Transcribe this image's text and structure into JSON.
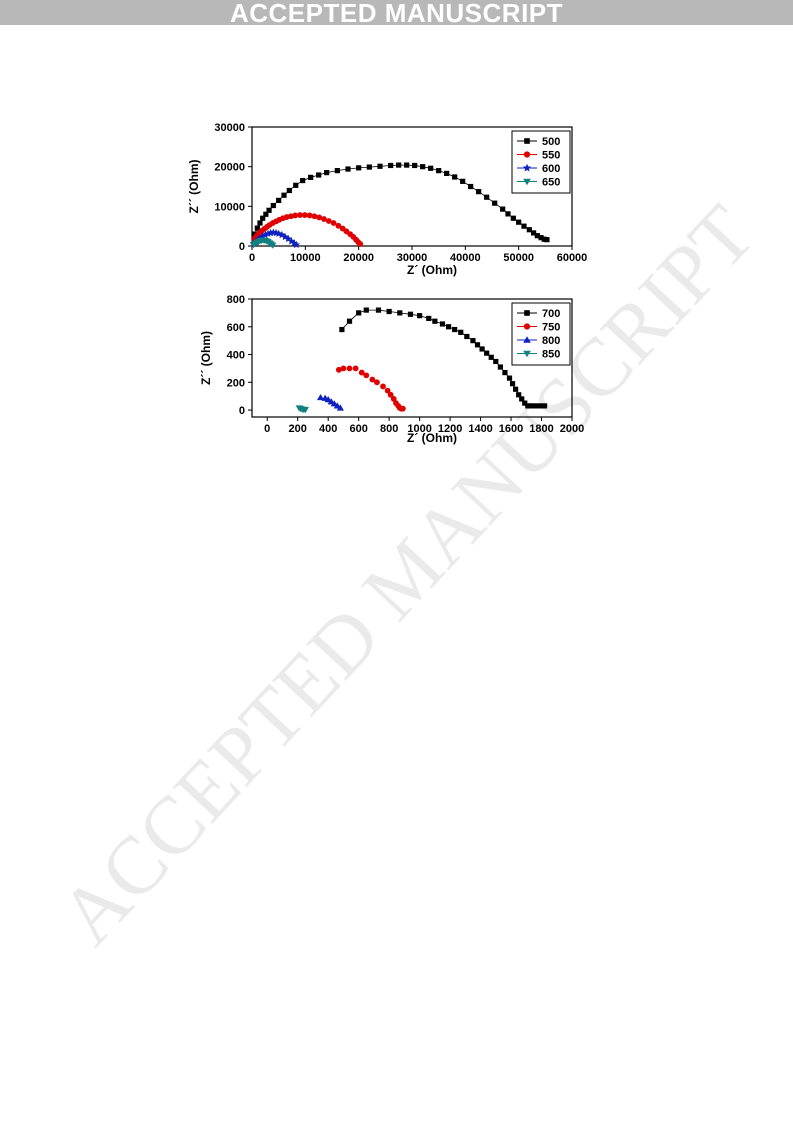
{
  "banner": {
    "text": "ACCEPTED MANUSCRIPT"
  },
  "watermark": {
    "text": "ACCEPTED MANUSCRIPT"
  },
  "chart_data": [
    {
      "type": "scatter",
      "xlabel": "Z´ (Ohm)",
      "ylabel": "Z´´ (Ohm)",
      "xlim": [
        0,
        60000
      ],
      "ylim": [
        0,
        30000
      ],
      "xticks": [
        "0",
        "10000",
        "20000",
        "30000",
        "40000",
        "50000",
        "60000"
      ],
      "yticks": [
        "0",
        "10000",
        "20000",
        "30000"
      ],
      "legend_position": "top-right",
      "grid": false,
      "series": [
        {
          "name": "500",
          "marker": "square",
          "color": "#000000",
          "line": true,
          "x": [
            500,
            1000,
            1500,
            2000,
            2600,
            3200,
            4000,
            5000,
            6000,
            7000,
            8200,
            9500,
            11000,
            12500,
            14000,
            16000,
            18000,
            20000,
            22000,
            24000,
            26000,
            27500,
            29000,
            30500,
            32000,
            33500,
            35000,
            36500,
            38000,
            39500,
            41000,
            42500,
            44000,
            45500,
            47000,
            48000,
            49000,
            50000,
            51000,
            52000,
            52800,
            53500,
            54200,
            54800,
            55300
          ],
          "y": [
            3000,
            4500,
            5800,
            7000,
            8000,
            9000,
            10200,
            11500,
            12800,
            14000,
            15300,
            16500,
            17300,
            17900,
            18500,
            19000,
            19400,
            19700,
            19900,
            20100,
            20300,
            20400,
            20400,
            20300,
            20000,
            19600,
            19000,
            18300,
            17400,
            16300,
            15000,
            13700,
            12300,
            10800,
            9300,
            8100,
            7000,
            6000,
            5000,
            4100,
            3300,
            2600,
            2100,
            1700,
            1600
          ]
        },
        {
          "name": "550",
          "marker": "circle",
          "color": "#e00000",
          "line": false,
          "x": [
            400,
            700,
            1000,
            1400,
            1800,
            2300,
            2800,
            3300,
            3900,
            4500,
            5100,
            5800,
            6500,
            7300,
            8100,
            9000,
            9900,
            10800,
            11700,
            12600,
            13500,
            14400,
            15300,
            16200,
            17000,
            17700,
            18400,
            19000,
            19500,
            19900,
            20300
          ],
          "y": [
            1700,
            2300,
            2800,
            3300,
            3800,
            4300,
            4800,
            5300,
            5800,
            6200,
            6600,
            7000,
            7300,
            7500,
            7700,
            7800,
            7800,
            7700,
            7500,
            7200,
            6800,
            6300,
            5800,
            5100,
            4400,
            3700,
            3000,
            2300,
            1600,
            1000,
            500
          ]
        },
        {
          "name": "600",
          "marker": "star",
          "color": "#1020c0",
          "line": false,
          "x": [
            300,
            700,
            1100,
            1500,
            2000,
            2500,
            3000,
            3500,
            4000,
            4500,
            5000,
            5600,
            6200,
            6800,
            7400,
            7900,
            8300
          ],
          "y": [
            600,
            1000,
            1500,
            2000,
            2400,
            2800,
            3100,
            3300,
            3400,
            3300,
            3100,
            2800,
            2300,
            1800,
            1200,
            700,
            300
          ]
        },
        {
          "name": "650",
          "marker": "triangle-down",
          "color": "#108080",
          "line": false,
          "x": [
            300,
            600,
            900,
            1200,
            1500,
            1800,
            2100,
            2400,
            2700,
            3000,
            3300,
            3600,
            3900
          ],
          "y": [
            300,
            600,
            900,
            1100,
            1300,
            1400,
            1500,
            1400,
            1300,
            1100,
            800,
            500,
            200
          ]
        }
      ]
    },
    {
      "type": "scatter",
      "xlabel": "Z´ (Ohm)",
      "ylabel": "Z´´ (Ohm)",
      "xlim": [
        -100,
        2000
      ],
      "ylim": [
        -50,
        800
      ],
      "xticks": [
        "0",
        "200",
        "400",
        "600",
        "800",
        "1000",
        "1200",
        "1400",
        "1600",
        "1800",
        "2000"
      ],
      "yticks": [
        "0",
        "200",
        "400",
        "600",
        "800"
      ],
      "legend_position": "top-right",
      "grid": false,
      "series": [
        {
          "name": "700",
          "marker": "square",
          "color": "#000000",
          "line": true,
          "x": [
            490,
            540,
            600,
            650,
            730,
            800,
            870,
            940,
            1000,
            1060,
            1100,
            1150,
            1190,
            1230,
            1270,
            1310,
            1350,
            1380,
            1410,
            1440,
            1470,
            1500,
            1530,
            1560,
            1590,
            1610,
            1630,
            1650,
            1670,
            1690,
            1710,
            1730,
            1760,
            1790,
            1820
          ],
          "y": [
            580,
            640,
            700,
            720,
            720,
            710,
            700,
            690,
            680,
            660,
            640,
            620,
            600,
            580,
            560,
            530,
            500,
            470,
            440,
            410,
            380,
            350,
            310,
            270,
            230,
            190,
            150,
            110,
            80,
            50,
            30,
            30,
            30,
            30,
            30
          ]
        },
        {
          "name": "750",
          "marker": "circle",
          "color": "#e00000",
          "line": false,
          "x": [
            470,
            500,
            540,
            580,
            620,
            650,
            690,
            720,
            760,
            790,
            810,
            830,
            845,
            860,
            870,
            880,
            890
          ],
          "y": [
            290,
            300,
            300,
            300,
            270,
            250,
            220,
            200,
            170,
            140,
            110,
            80,
            50,
            30,
            15,
            10,
            10
          ]
        },
        {
          "name": "800",
          "marker": "triangle-up",
          "color": "#1020c0",
          "line": false,
          "x": [
            350,
            380,
            400,
            420,
            440,
            460,
            480
          ],
          "y": [
            90,
            85,
            75,
            60,
            45,
            30,
            15
          ]
        },
        {
          "name": "850",
          "marker": "triangle-down",
          "color": "#108080",
          "line": false,
          "x": [
            210,
            220,
            230,
            240,
            250
          ],
          "y": [
            15,
            10,
            5,
            5,
            3
          ]
        }
      ]
    }
  ]
}
